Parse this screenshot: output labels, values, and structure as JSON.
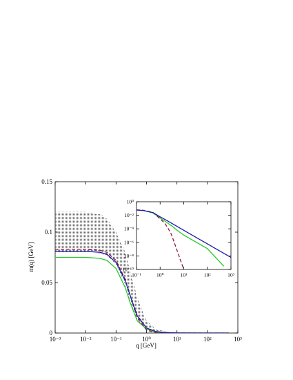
{
  "chart_data": [
    {
      "type": "line",
      "xlabel": "q [GeV]",
      "ylabel": "m(q) [GeV]",
      "xlog": true,
      "xlim": [
        0.001,
        1000
      ],
      "ylim": [
        0,
        0.15
      ],
      "xticks": [
        {
          "value": 0.001,
          "label": "10⁻³"
        },
        {
          "value": 0.01,
          "label": "10⁻²"
        },
        {
          "value": 0.1,
          "label": "10⁻¹"
        },
        {
          "value": 1,
          "label": "10⁰"
        },
        {
          "value": 10,
          "label": "10¹"
        },
        {
          "value": 100,
          "label": "10²"
        },
        {
          "value": 1000,
          "label": "10³"
        }
      ],
      "yticks": [
        0,
        0.05,
        0.1,
        0.15
      ],
      "x": [
        0.001,
        0.003,
        0.01,
        0.03,
        0.05,
        0.1,
        0.2,
        0.3,
        0.5,
        1,
        2,
        5,
        10,
        100,
        500
      ],
      "band": {
        "color": "#777777",
        "upper": [
          0.12,
          0.12,
          0.12,
          0.118,
          0.113,
          0.1,
          0.08,
          0.06,
          0.035,
          0.012,
          0.004,
          0.001,
          0.0002,
          0,
          0
        ],
        "lower": [
          0.08,
          0.08,
          0.08,
          0.079,
          0.077,
          0.068,
          0.048,
          0.03,
          0.012,
          0.003,
          0.0005,
          0,
          0,
          0,
          0
        ]
      },
      "series": [
        {
          "color": "#22cc22",
          "values": [
            0.075,
            0.075,
            0.075,
            0.074,
            0.072,
            0.064,
            0.045,
            0.029,
            0.012,
            0.004,
            0.001,
            0.0002,
            0.0001,
            0,
            0
          ]
        },
        {
          "color": "#8b1a3a",
          "dash": true,
          "values": [
            0.083,
            0.083,
            0.083,
            0.082,
            0.08,
            0.072,
            0.053,
            0.036,
            0.015,
            0.003,
            0.0002,
            0,
            0,
            0,
            0
          ]
        },
        {
          "color": "#1a1aaa",
          "values": [
            0.081,
            0.081,
            0.081,
            0.08,
            0.078,
            0.07,
            0.052,
            0.036,
            0.017,
            0.005,
            0.0015,
            0.0003,
            0.0001,
            0,
            0
          ]
        }
      ]
    },
    {
      "type": "line",
      "xlog": true,
      "ylog": true,
      "xlim": [
        0.1,
        1000
      ],
      "ylim": [
        1e-10,
        1
      ],
      "xticks": [
        {
          "value": 0.1,
          "label": "10⁻¹"
        },
        {
          "value": 1,
          "label": "10⁰"
        },
        {
          "value": 10,
          "label": "10¹"
        },
        {
          "value": 100,
          "label": "10²"
        },
        {
          "value": 1000,
          "label": "10³"
        }
      ],
      "yticks": [
        {
          "value": 1,
          "label": "10⁰"
        },
        {
          "value": 0.01,
          "label": "10⁻²"
        },
        {
          "value": 0.0001,
          "label": "10⁻⁴"
        },
        {
          "value": 1e-06,
          "label": "10⁻⁶"
        },
        {
          "value": 1e-08,
          "label": "10⁻⁸"
        },
        {
          "value": 1e-10,
          "label": "10⁻¹⁰"
        }
      ],
      "x": [
        0.1,
        0.2,
        0.5,
        1,
        1.5,
        2,
        2.5,
        3,
        5,
        10,
        100,
        500,
        1000
      ],
      "series": [
        {
          "color": "#22cc22",
          "values": [
            0.06,
            0.05,
            0.022,
            0.004,
            0.0016,
            0.0008,
            0.00045,
            0.0003,
            7e-05,
            1.2e-05,
            1.2e-07,
            3e-10,
            null
          ]
        },
        {
          "color": "#8b1a3a",
          "dash": true,
          "values": [
            0.065,
            0.055,
            0.026,
            0.003,
            0.0008,
            0.0002,
            5e-05,
            1.5e-05,
            1e-07,
            1e-10,
            null,
            null,
            null
          ]
        },
        {
          "color": "#1a1aaa",
          "values": [
            0.06,
            0.05,
            0.025,
            0.006,
            0.0028,
            0.0016,
            0.001,
            0.0007,
            0.00025,
            6e-05,
            6e-07,
            2.4e-08,
            6e-09
          ]
        }
      ]
    }
  ]
}
